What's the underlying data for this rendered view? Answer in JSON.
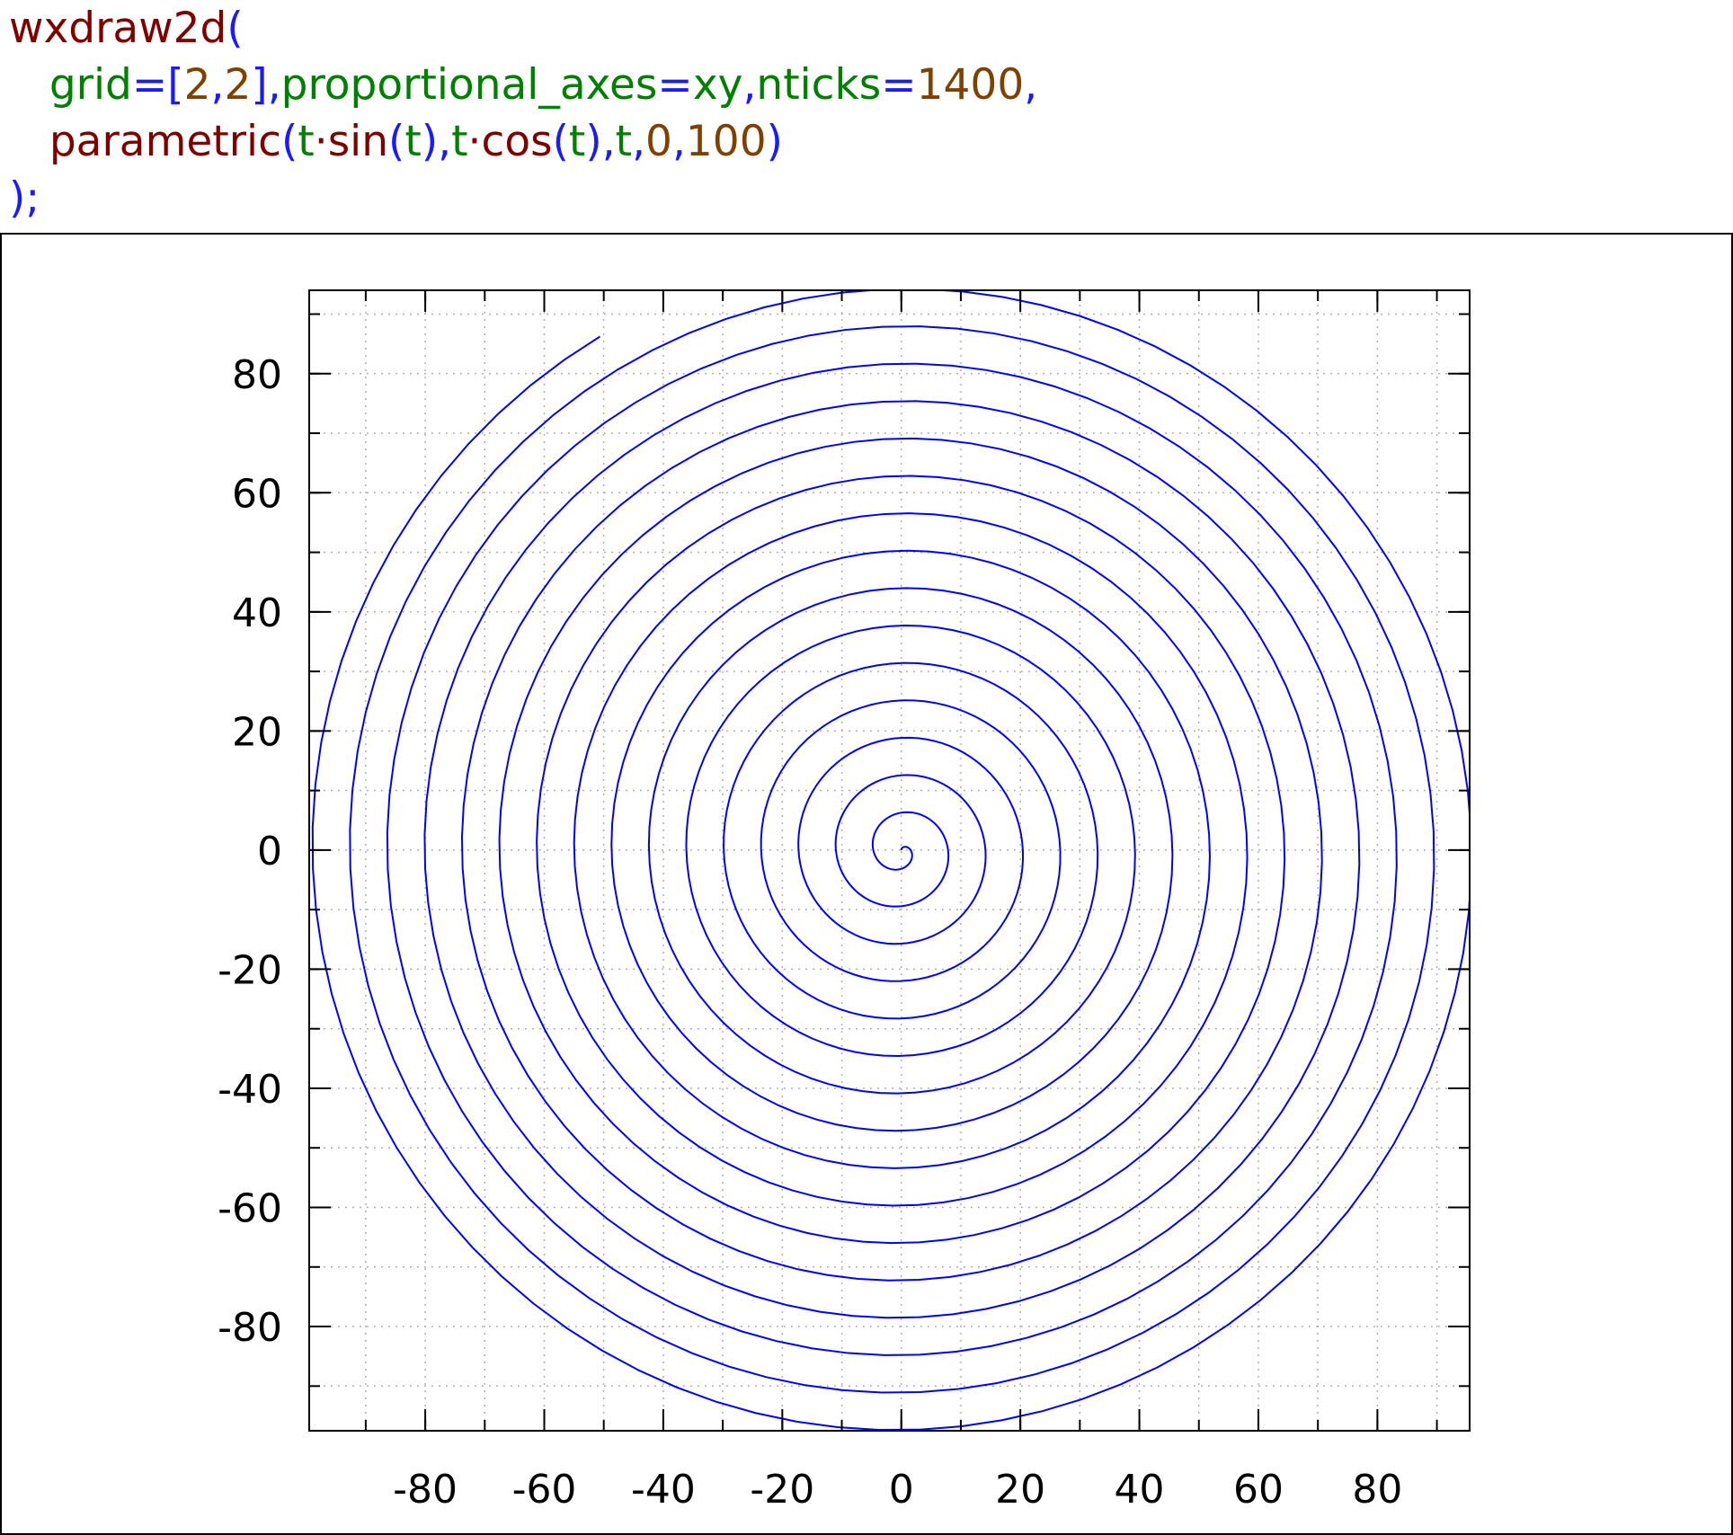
{
  "code": {
    "lines": [
      [
        {
          "text": "wxdraw2d",
          "kind": "fn"
        },
        {
          "text": "(",
          "kind": "op"
        }
      ],
      [
        {
          "text": "   ",
          "kind": "op"
        },
        {
          "text": "grid",
          "kind": "var"
        },
        {
          "text": "=[",
          "kind": "op"
        },
        {
          "text": "2",
          "kind": "num"
        },
        {
          "text": ",",
          "kind": "op"
        },
        {
          "text": "2",
          "kind": "num"
        },
        {
          "text": "],",
          "kind": "op"
        },
        {
          "text": "proportional_axes",
          "kind": "var"
        },
        {
          "text": "=",
          "kind": "op"
        },
        {
          "text": "xy",
          "kind": "var"
        },
        {
          "text": ",",
          "kind": "op"
        },
        {
          "text": "nticks",
          "kind": "var"
        },
        {
          "text": "=",
          "kind": "op"
        },
        {
          "text": "1400",
          "kind": "num"
        },
        {
          "text": ",",
          "kind": "op"
        }
      ],
      [
        {
          "text": "   ",
          "kind": "op"
        },
        {
          "text": "parametric",
          "kind": "fn"
        },
        {
          "text": "(",
          "kind": "op"
        },
        {
          "text": "t",
          "kind": "var"
        },
        {
          "text": "·",
          "kind": "fn"
        },
        {
          "text": "sin",
          "kind": "fn"
        },
        {
          "text": "(",
          "kind": "op"
        },
        {
          "text": "t",
          "kind": "var"
        },
        {
          "text": "),",
          "kind": "op"
        },
        {
          "text": "t",
          "kind": "var"
        },
        {
          "text": "·",
          "kind": "fn"
        },
        {
          "text": "cos",
          "kind": "fn"
        },
        {
          "text": "(",
          "kind": "op"
        },
        {
          "text": "t",
          "kind": "var"
        },
        {
          "text": "),",
          "kind": "op"
        },
        {
          "text": "t",
          "kind": "var"
        },
        {
          "text": ",",
          "kind": "op"
        },
        {
          "text": "0",
          "kind": "num"
        },
        {
          "text": ",",
          "kind": "op"
        },
        {
          "text": "100",
          "kind": "num"
        },
        {
          "text": ")",
          "kind": "op"
        }
      ],
      [
        {
          "text": ");",
          "kind": "op"
        }
      ]
    ],
    "colors": {
      "fn": "#800000",
      "var": "#008000",
      "num": "#804000",
      "op": "#1a1aff"
    }
  },
  "chart_data": {
    "type": "line",
    "title": "",
    "xlabel": "",
    "ylabel": "",
    "parametric": {
      "x": "t·sin(t)",
      "y": "t·cos(t)",
      "t_range": [
        0,
        100
      ],
      "nticks": 1400
    },
    "series": [
      {
        "color": "#0000ff"
      }
    ],
    "xlim": [
      -99.5,
      95.5
    ],
    "ylim": [
      -97.5,
      94
    ],
    "xticks": [
      -80,
      -60,
      -40,
      -20,
      0,
      20,
      40,
      60,
      80
    ],
    "yticks": [
      -80,
      -60,
      -40,
      -20,
      0,
      20,
      40,
      60,
      80
    ],
    "xtick_labels": [
      "-80",
      "-60",
      "-40",
      "-20",
      "0",
      "20",
      "40",
      "60",
      "80"
    ],
    "ytick_labels": [
      "-80",
      "-60",
      "-40",
      "-20",
      "0",
      "20",
      "40",
      "60",
      "80"
    ],
    "minor_tick_step": 10,
    "grid": true,
    "grid_style": "dotted",
    "grid_color": "#b0b0b0",
    "legend": false,
    "proportional_axes": "xy"
  }
}
